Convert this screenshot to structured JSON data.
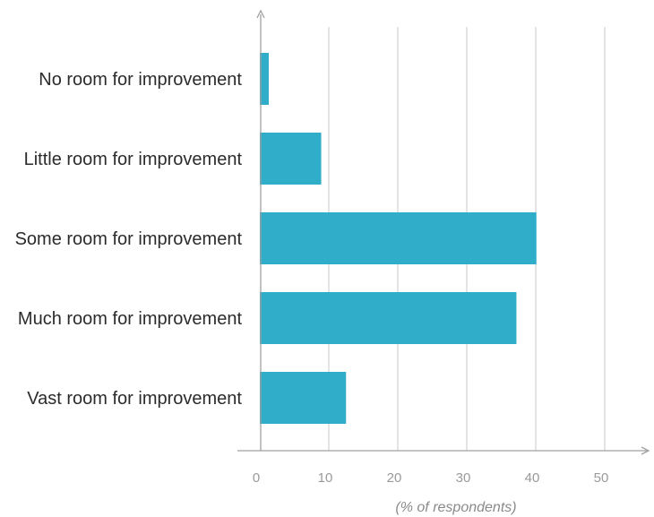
{
  "chart_data": {
    "type": "bar",
    "orientation": "horizontal",
    "categories": [
      "No room for improvement",
      "Little room for improvement",
      "Some room for improvement",
      "Much room for improvement",
      "Vast room for improvement"
    ],
    "values": [
      1.3,
      8.9,
      40.1,
      37.2,
      12.5
    ],
    "xlabel": "(% of respondents)",
    "ylabel": "",
    "xlim": [
      0,
      50
    ],
    "xticks": [
      "0",
      "10",
      "20",
      "30",
      "40",
      "50"
    ],
    "grid": "vertical",
    "legend": "none",
    "bar_color": "#30adc8",
    "grid_color": "#c8c8c8",
    "axis_color": "#a0a0a0"
  }
}
